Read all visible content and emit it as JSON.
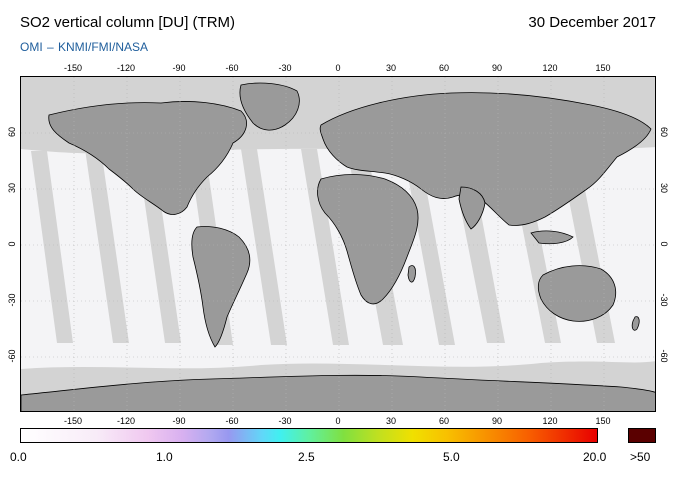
{
  "header": {
    "title": "SO2 vertical column [DU] (TRM)",
    "date": "30 December 2017",
    "credit": "OMI  –  KNMI/FMI/NASA"
  },
  "map": {
    "longitude_ticks_top": [
      "-150",
      "-120",
      "-90",
      "-60",
      "-30",
      "0",
      "30",
      "60",
      "90",
      "120",
      "150"
    ],
    "longitude_ticks_bottom": [
      "-150",
      "-120",
      "-90",
      "-60",
      "-30",
      "0",
      "30",
      "60",
      "90",
      "120",
      "150"
    ],
    "latitude_ticks_left": [
      "60",
      "30",
      "0",
      "-30",
      "-60"
    ],
    "latitude_ticks_right": [
      "60",
      "30",
      "0",
      "-30",
      "-60"
    ],
    "colors": {
      "land": "#9a9a9a",
      "no_data": "#d3d3d3",
      "ocean_data": "#f4f4f6",
      "coastline": "#000000"
    }
  },
  "colorbar": {
    "labels": [
      "0.0",
      "1.0",
      "2.5",
      "5.0",
      "20.0"
    ],
    "overflow_label": ">50",
    "overflow_color": "#5a0000"
  }
}
